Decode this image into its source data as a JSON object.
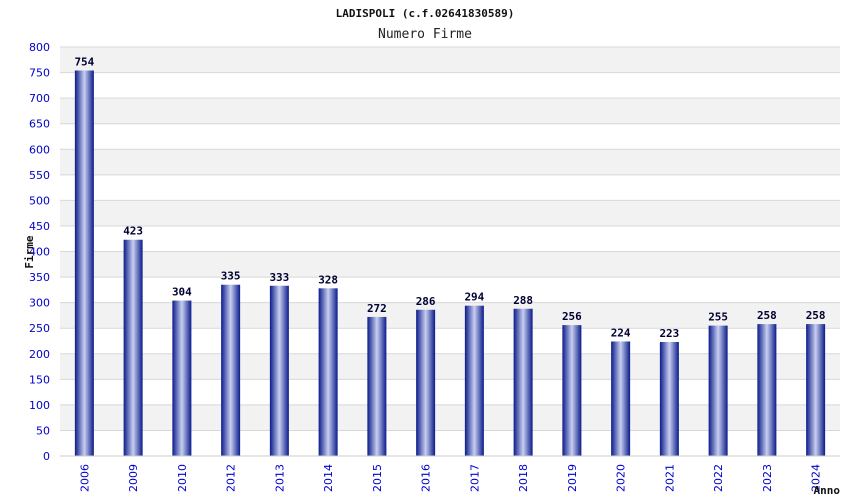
{
  "chart_data": {
    "type": "bar",
    "title": "LADISPOLI (c.f.02641830589)",
    "subtitle": "Numero Firme",
    "xlabel": "Anno",
    "ylabel": "Firme",
    "categories": [
      "2006",
      "2009",
      "2010",
      "2012",
      "2013",
      "2014",
      "2015",
      "2016",
      "2017",
      "2018",
      "2019",
      "2020",
      "2021",
      "2022",
      "2023",
      "2024"
    ],
    "values": [
      754,
      423,
      304,
      335,
      333,
      328,
      272,
      286,
      294,
      288,
      256,
      224,
      223,
      255,
      258,
      258
    ],
    "ylim": [
      0,
      800
    ],
    "yticks": [
      0,
      50,
      100,
      150,
      200,
      250,
      300,
      350,
      400,
      450,
      500,
      550,
      600,
      650,
      700,
      750,
      800
    ],
    "grid": true,
    "colors": {
      "bar_dark": "#0a1a8a",
      "bar_light": "#c8cff0",
      "band": "#f2f2f2",
      "gridline": "#d8d8d8",
      "tick_text": "#0000cc"
    }
  }
}
